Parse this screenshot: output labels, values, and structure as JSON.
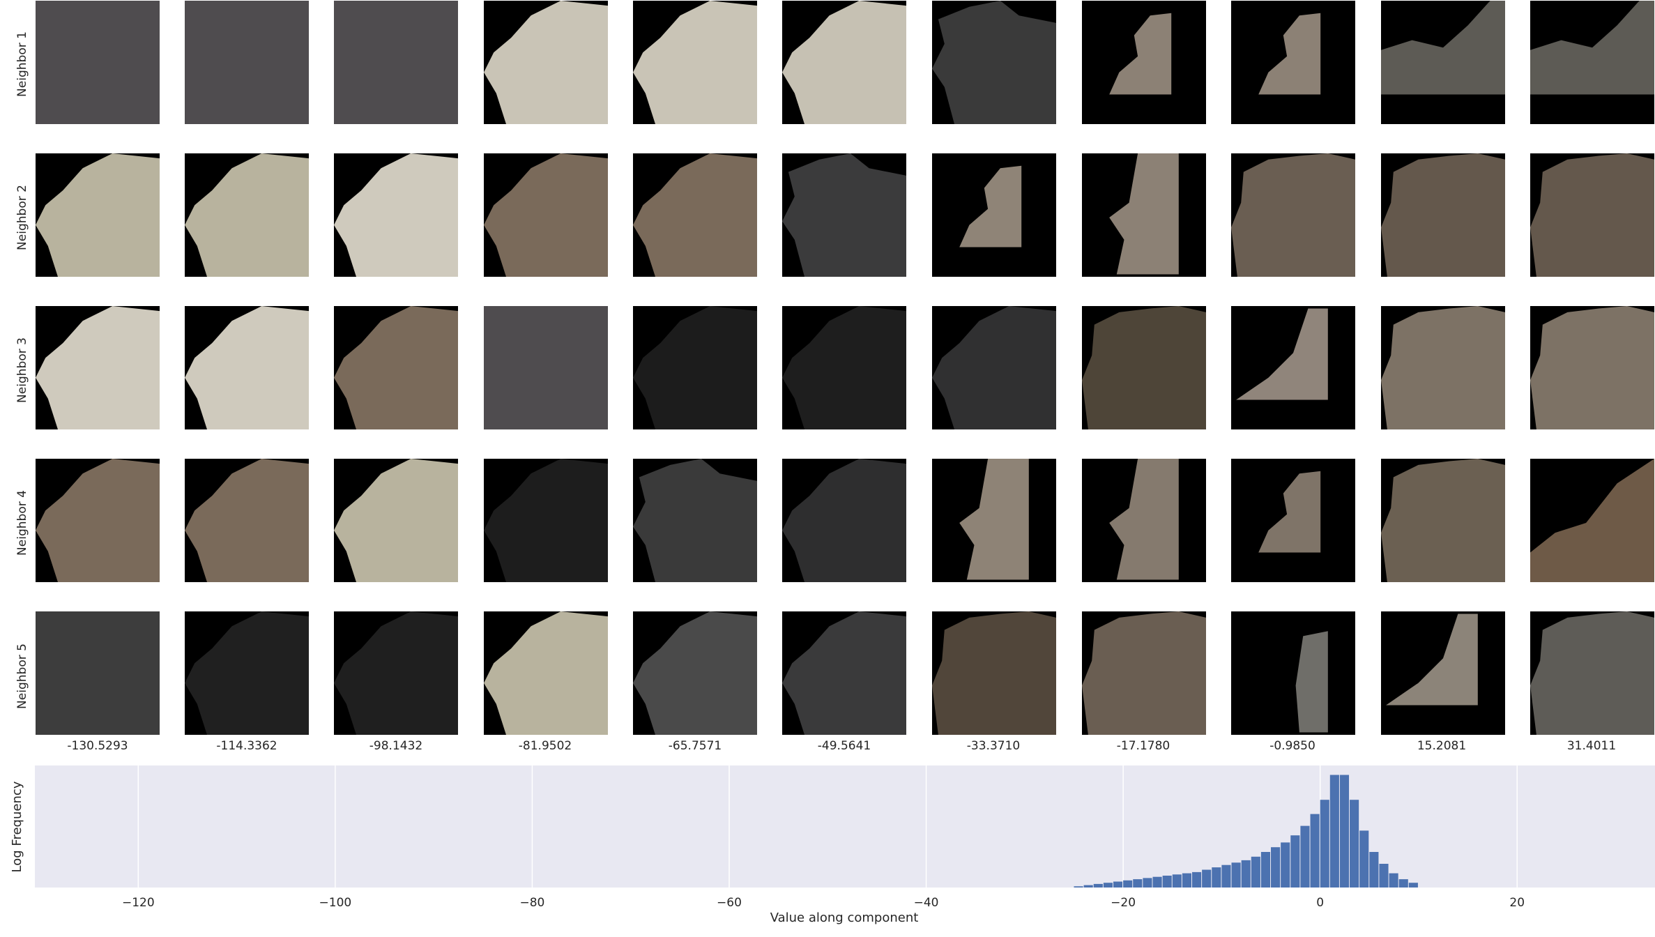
{
  "grid": {
    "row_labels": [
      "Neighbor 1",
      "Neighbor 2",
      "Neighbor 3",
      "Neighbor 4",
      "Neighbor 5"
    ],
    "column_values": [
      "-130.5293",
      "-114.3362",
      "-98.1432",
      "-81.9502",
      "-65.7571",
      "-49.5641",
      "-33.3710",
      "-17.1780",
      "-0.9850",
      "15.2081",
      "31.4011"
    ]
  },
  "chart_data": {
    "type": "bar",
    "title": "",
    "xlabel": "Value along component",
    "ylabel": "Log Frequency",
    "xlim": [
      -130.5,
      34.0
    ],
    "xticks": [
      -120,
      -100,
      -80,
      -60,
      -40,
      -20,
      0,
      20
    ],
    "grid": true,
    "background": "#e8e8f2",
    "bar_color": "#4c72b0",
    "bins": {
      "x_start": [
        -25,
        -24,
        -23,
        -22,
        -21,
        -20,
        -19,
        -18,
        -17,
        -16,
        -15,
        -14,
        -13,
        -12,
        -11,
        -10,
        -9,
        -8,
        -7,
        -6,
        -5,
        -4,
        -3,
        -2,
        -1,
        0,
        1,
        2,
        3,
        4,
        5,
        6,
        7,
        8,
        9
      ],
      "width": 1,
      "log_frequency": [
        0.01,
        0.02,
        0.03,
        0.04,
        0.05,
        0.06,
        0.07,
        0.08,
        0.09,
        0.1,
        0.11,
        0.12,
        0.13,
        0.15,
        0.17,
        0.19,
        0.21,
        0.23,
        0.26,
        0.3,
        0.34,
        0.38,
        0.44,
        0.52,
        0.62,
        0.74,
        0.95,
        0.95,
        0.74,
        0.48,
        0.3,
        0.2,
        0.12,
        0.07,
        0.04
      ]
    }
  }
}
